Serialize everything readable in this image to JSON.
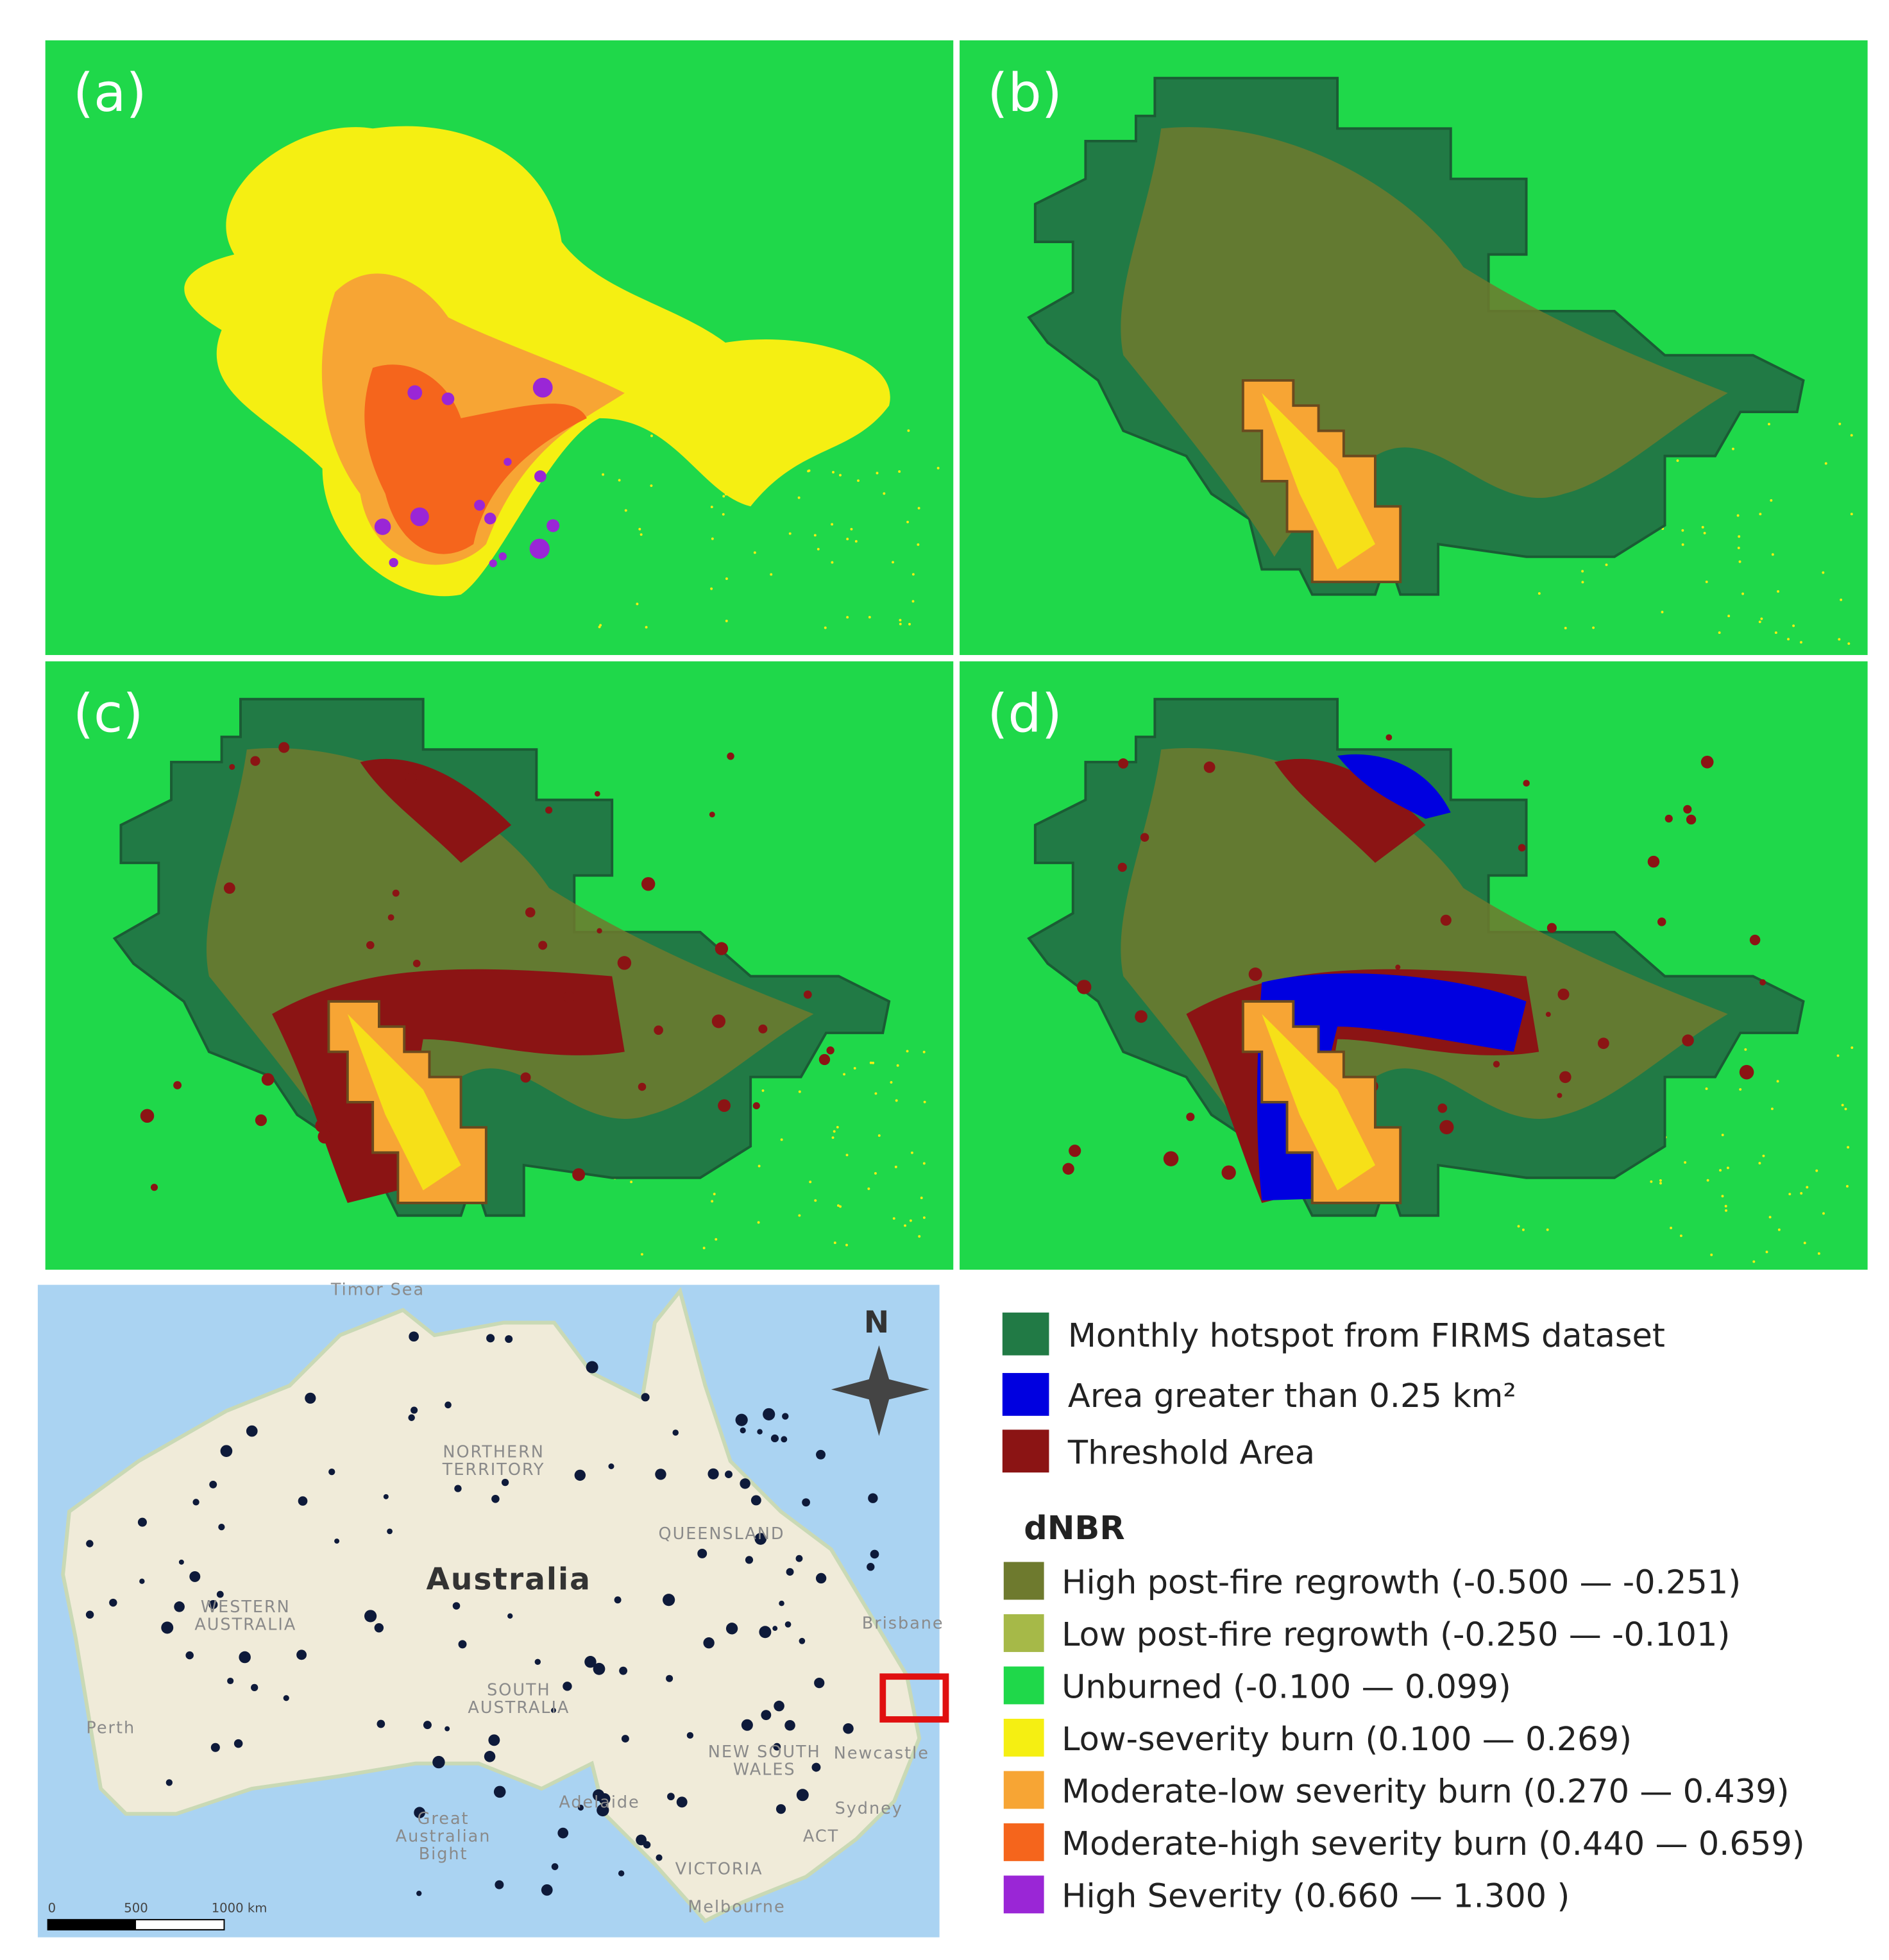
{
  "panels": [
    {
      "label": "(a)"
    },
    {
      "label": "(b)"
    },
    {
      "label": "(c)"
    },
    {
      "label": "(d)"
    }
  ],
  "map": {
    "labels": [
      {
        "lines": [
          "Timor Sea"
        ]
      },
      {
        "lines": [
          "NORTHERN",
          "TERRITORY"
        ]
      },
      {
        "lines": [
          "QUEENSLAND"
        ]
      },
      {
        "lines": [
          "Australia"
        ]
      },
      {
        "lines": [
          "WESTERN",
          "AUSTRALIA"
        ]
      },
      {
        "lines": [
          "SOUTH",
          "AUSTRALIA"
        ]
      },
      {
        "lines": [
          "Perth"
        ]
      },
      {
        "lines": [
          "Adelaide"
        ]
      },
      {
        "lines": [
          "Brisbane"
        ]
      },
      {
        "lines": [
          "Newcastle"
        ]
      },
      {
        "lines": [
          "Sydney"
        ]
      },
      {
        "lines": [
          "NEW SOUTH",
          "WALES"
        ]
      },
      {
        "lines": [
          "ACT"
        ]
      },
      {
        "lines": [
          "VICTORIA"
        ]
      },
      {
        "lines": [
          "Melbourne"
        ]
      },
      {
        "lines": [
          "Great",
          "Australian",
          "Bight"
        ]
      }
    ],
    "north": "N",
    "scale": [
      "0",
      "500",
      "1000 km"
    ]
  },
  "legend": {
    "items": [
      {
        "label": "Monthly hotspot from FIRMS dataset",
        "color": "#217a45"
      },
      {
        "label": "Area greater than 0.25 km²",
        "color": "#0000e0"
      },
      {
        "label": "Threshold Area",
        "color": "#8b1414"
      }
    ],
    "dnbr_title": "dNBR",
    "dnbr": [
      {
        "label": "High post-fire regrowth (-0.500 — -0.251)",
        "color": "#6e7a2e"
      },
      {
        "label": "Low post-fire regrowth (-0.250 — -0.101)",
        "color": "#a6b948"
      },
      {
        "label": "Unburned (-0.100 — 0.099)",
        "color": "#1fd84a"
      },
      {
        "label": "Low-severity burn (0.100 — 0.269)",
        "color": "#f5ef12"
      },
      {
        "label": "Moderate-low severity burn (0.270 — 0.439)",
        "color": "#f7a534"
      },
      {
        "label": "Moderate-high severity burn (0.440 — 0.659)",
        "color": "#f5651c"
      },
      {
        "label": "High Severity (0.660 — 1.300 )",
        "color": "#9a26d6"
      }
    ]
  }
}
